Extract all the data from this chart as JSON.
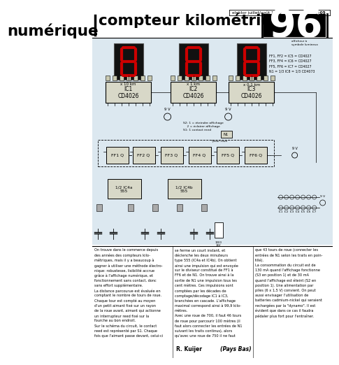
{
  "title_line1": "compteur kilométrique",
  "title_line2": "numérique",
  "page_number": "96",
  "header_text": "elektor juillet/août 1979",
  "header_page": "8-05",
  "background": "#ffffff",
  "body_text_col1": "On trouve dans le commerce depuis\ndes années des compteurs kilo-\nmétriques, mais il y a beaucoup à\ngagner à utiliser une méthode électro-\nnique: robustesse, lisibilité accrue\ngrâce à l'affichage numérique, et\nfonctionnement sans contact, donc\nsans effort supplémentaire.\nLa distance parcourue est évaluée en\ncomptant le nombre de tours de roue.\nChaque tour est compté au moyen\nd'un petit aimant fixé sur un rayon\nde la roue avant, aimant qui actionne\nun interrupteur reed fixé sur la\nfourche au bon endroit.\nSur le schéma du circuit, le contact\nreed est représenté par S1. Chaque\nfois que l'aimant passe devant, celui-ci",
  "body_text_col2": "se ferme un court instant, et\ndéclenche les deux minuteurs\ntype 555 (IC4a et IC4b). On obtient\nainsi une impulsion qui est envoyée\nsur le diviseur constitué de FF1 à\nFF6 et de N1. On trouve ainsi à la\nsortie de N1 une impulsion tous les\ncent mètres. Ces impulsions sont\ncomptées par les décades de\ncomptage/décodage IC1 à IC3,\nbranchées en cascade. L'affichage\nmaximal correspond ainsi à 99,9 kilo-\nmètres.\nAvec une roue de 700, il faut 46 tours\nde roue pour parcourir 100 mètres (il\nfaut alors connecter les entrées de N1\nsuivant les traits continus), alors\nqu'avec une roue de 750 il ne faut",
  "body_text_col3": "que 43 tours de roue (connecter les\nentrées de N1 selon les traits en poin-\ntillé).\nLa consommation du circuit est de\n130 mA quand l'affichage fonctionne\n(S3 en position 1) et de 30 mA\nquand l'affichage est éteint (S2 en\nposition 1). Une alimentation par\npiles (6 x 1,5 V) convient. On peut\naussi envisager l'utilisation de\nbatteries cadmium-nickel qui seraient\nrechargées par la \"dynamo\". Il est\névident que dans ce cas il faudra\npédaler plus fort pour l'entraîner.",
  "author": "R. Kuijer",
  "country": "(Pays Bas)",
  "component_labels": [
    "FF1, FF2 = IC5 = CD4027",
    "FF3, FF4 = IC6 = CD4027",
    "FF5, FF6 = IC7 = CD4027",
    "N1 = 1/3 IC8 = 1/3 CD4073"
  ],
  "display_labels": [
    "x 10 km",
    "x 1 km",
    "x 0,1 km"
  ],
  "ic_labels": [
    "IC1\nCD4026",
    "IC2\nCD4026",
    "IC3\nCD4026"
  ],
  "ff_labels": [
    "FF1",
    "FF2",
    "FF3",
    "FF4",
    "FF5",
    "FF6"
  ],
  "diagram_bg": "#dce8f0",
  "seg_on_color": "#cc0000",
  "seg_off_color": "#3a3a3a",
  "display_bg": "#111111",
  "ic_bg": "#d8d8c8",
  "ff_bg": "#d8d8c8"
}
